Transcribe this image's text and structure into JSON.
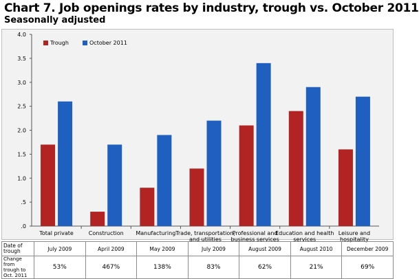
{
  "title": "Chart 7. Job openings rates by industry, trough vs. October 2011",
  "subtitle": "Seasonally adjusted",
  "chart_data": {
    "type": "bar",
    "categories": [
      [
        "Total private"
      ],
      [
        "Construction"
      ],
      [
        "Manufacturing"
      ],
      [
        "Trade, transportation,",
        "and utilities"
      ],
      [
        "Professional and",
        "business services"
      ],
      [
        "Education and health",
        "services"
      ],
      [
        "Leisure and",
        "hospitality"
      ]
    ],
    "series": [
      {
        "name": "Trough",
        "color": "#b22424",
        "values": [
          1.7,
          0.3,
          0.8,
          1.2,
          2.1,
          2.4,
          1.6
        ]
      },
      {
        "name": "October 2011",
        "color": "#1f5fbf",
        "values": [
          2.6,
          1.7,
          1.9,
          2.2,
          3.4,
          2.9,
          2.7
        ]
      }
    ],
    "yticks": [
      ".0",
      ".5",
      "1.0",
      "1.5",
      "2.0",
      "2.5",
      "3.0",
      "3.5",
      "4.0"
    ],
    "ylim": [
      0,
      4.0
    ],
    "grid": false,
    "legend_position": "top-left"
  },
  "table": {
    "row1_label": [
      "Date of",
      "trough"
    ],
    "row1_values": [
      "July 2009",
      "April 2009",
      "May 2009",
      "July 2009",
      "August 2009",
      "August 2010",
      "December 2009"
    ],
    "row2_label": [
      "Change from",
      "trough to",
      "Oct. 2011"
    ],
    "row2_values": [
      "53%",
      "467%",
      "138%",
      "83%",
      "62%",
      "21%",
      "69%"
    ]
  }
}
